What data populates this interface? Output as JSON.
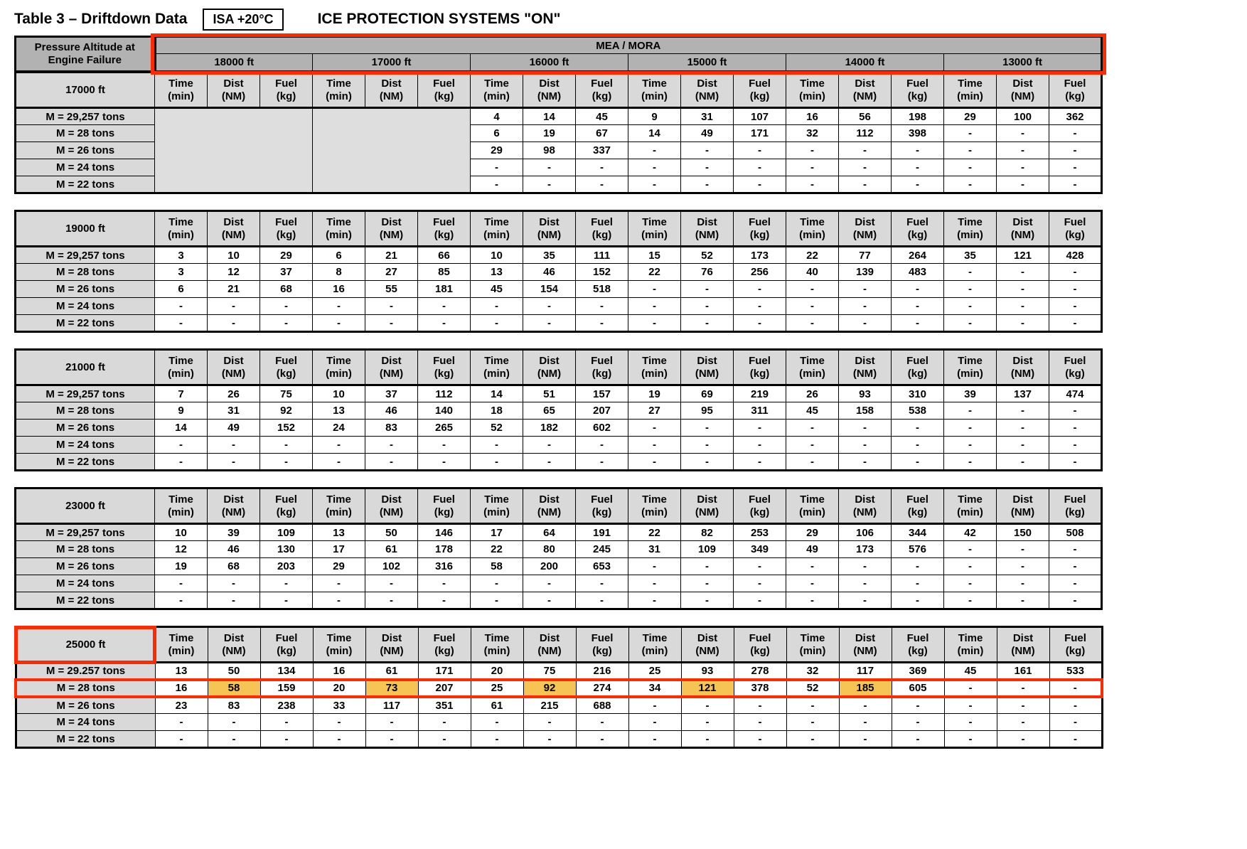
{
  "page": {
    "title": "Table 3 – Driftdown Data",
    "isa_badge": "ISA +20°C",
    "ice_label": "ICE PROTECTION SYSTEMS \"ON\""
  },
  "header": {
    "left_line1": "Pressure Altitude at",
    "left_line2": "Engine Failure",
    "mea_mora": "MEA / MORA",
    "groups": [
      "18000 ft",
      "17000 ft",
      "16000 ft",
      "15000 ft",
      "14000 ft",
      "13000 ft"
    ],
    "sub": [
      {
        "l1": "Time",
        "l2": "(min)"
      },
      {
        "l1": "Dist",
        "l2": "(NM)"
      },
      {
        "l1": "Fuel",
        "l2": "(kg)"
      }
    ]
  },
  "colors": {
    "header_gray": "#b2b2b2",
    "label_gray": "#d9d9d9",
    "empty_gray": "#dedede",
    "highlight_red": "#ff2a00",
    "highlight_amber": "#f5c455"
  },
  "blocks": [
    {
      "altitude": "17000 ft",
      "altitude_boxed": false,
      "rows": [
        {
          "label": "M = 29,257 tons",
          "boxed": false,
          "groups": [
            null,
            null,
            [
              "4",
              "14",
              "45"
            ],
            [
              "9",
              "31",
              "107"
            ],
            [
              "16",
              "56",
              "198"
            ],
            [
              "29",
              "100",
              "362"
            ]
          ]
        },
        {
          "label": "M = 28 tons",
          "boxed": false,
          "groups": [
            null,
            null,
            [
              "6",
              "19",
              "67"
            ],
            [
              "14",
              "49",
              "171"
            ],
            [
              "32",
              "112",
              "398"
            ],
            [
              "-",
              "-",
              "-"
            ]
          ]
        },
        {
          "label": "M = 26 tons",
          "boxed": false,
          "groups": [
            null,
            null,
            [
              "29",
              "98",
              "337"
            ],
            [
              "-",
              "-",
              "-"
            ],
            [
              "-",
              "-",
              "-"
            ],
            [
              "-",
              "-",
              "-"
            ]
          ]
        },
        {
          "label": "M = 24 tons",
          "boxed": false,
          "groups": [
            null,
            null,
            [
              "-",
              "-",
              "-"
            ],
            [
              "-",
              "-",
              "-"
            ],
            [
              "-",
              "-",
              "-"
            ],
            [
              "-",
              "-",
              "-"
            ]
          ]
        },
        {
          "label": "M = 22 tons",
          "boxed": false,
          "groups": [
            null,
            null,
            [
              "-",
              "-",
              "-"
            ],
            [
              "-",
              "-",
              "-"
            ],
            [
              "-",
              "-",
              "-"
            ],
            [
              "-",
              "-",
              "-"
            ]
          ]
        }
      ]
    },
    {
      "altitude": "19000 ft",
      "altitude_boxed": false,
      "rows": [
        {
          "label": "M = 29,257 tons",
          "boxed": false,
          "groups": [
            [
              "3",
              "10",
              "29"
            ],
            [
              "6",
              "21",
              "66"
            ],
            [
              "10",
              "35",
              "111"
            ],
            [
              "15",
              "52",
              "173"
            ],
            [
              "22",
              "77",
              "264"
            ],
            [
              "35",
              "121",
              "428"
            ]
          ]
        },
        {
          "label": "M = 28 tons",
          "boxed": false,
          "groups": [
            [
              "3",
              "12",
              "37"
            ],
            [
              "8",
              "27",
              "85"
            ],
            [
              "13",
              "46",
              "152"
            ],
            [
              "22",
              "76",
              "256"
            ],
            [
              "40",
              "139",
              "483"
            ],
            [
              "-",
              "-",
              "-"
            ]
          ]
        },
        {
          "label": "M = 26 tons",
          "boxed": false,
          "groups": [
            [
              "6",
              "21",
              "68"
            ],
            [
              "16",
              "55",
              "181"
            ],
            [
              "45",
              "154",
              "518"
            ],
            [
              "-",
              "-",
              "-"
            ],
            [
              "-",
              "-",
              "-"
            ],
            [
              "-",
              "-",
              "-"
            ]
          ]
        },
        {
          "label": "M = 24 tons",
          "boxed": false,
          "groups": [
            [
              "-",
              "-",
              "-"
            ],
            [
              "-",
              "-",
              "-"
            ],
            [
              "-",
              "-",
              "-"
            ],
            [
              "-",
              "-",
              "-"
            ],
            [
              "-",
              "-",
              "-"
            ],
            [
              "-",
              "-",
              "-"
            ]
          ]
        },
        {
          "label": "M = 22 tons",
          "boxed": false,
          "groups": [
            [
              "-",
              "-",
              "-"
            ],
            [
              "-",
              "-",
              "-"
            ],
            [
              "-",
              "-",
              "-"
            ],
            [
              "-",
              "-",
              "-"
            ],
            [
              "-",
              "-",
              "-"
            ],
            [
              "-",
              "-",
              "-"
            ]
          ]
        }
      ]
    },
    {
      "altitude": "21000 ft",
      "altitude_boxed": false,
      "rows": [
        {
          "label": "M = 29,257 tons",
          "boxed": false,
          "groups": [
            [
              "7",
              "26",
              "75"
            ],
            [
              "10",
              "37",
              "112"
            ],
            [
              "14",
              "51",
              "157"
            ],
            [
              "19",
              "69",
              "219"
            ],
            [
              "26",
              "93",
              "310"
            ],
            [
              "39",
              "137",
              "474"
            ]
          ]
        },
        {
          "label": "M = 28 tons",
          "boxed": false,
          "groups": [
            [
              "9",
              "31",
              "92"
            ],
            [
              "13",
              "46",
              "140"
            ],
            [
              "18",
              "65",
              "207"
            ],
            [
              "27",
              "95",
              "311"
            ],
            [
              "45",
              "158",
              "538"
            ],
            [
              "-",
              "-",
              "-"
            ]
          ]
        },
        {
          "label": "M = 26 tons",
          "boxed": false,
          "groups": [
            [
              "14",
              "49",
              "152"
            ],
            [
              "24",
              "83",
              "265"
            ],
            [
              "52",
              "182",
              "602"
            ],
            [
              "-",
              "-",
              "-"
            ],
            [
              "-",
              "-",
              "-"
            ],
            [
              "-",
              "-",
              "-"
            ]
          ]
        },
        {
          "label": "M = 24 tons",
          "boxed": false,
          "groups": [
            [
              "-",
              "-",
              "-"
            ],
            [
              "-",
              "-",
              "-"
            ],
            [
              "-",
              "-",
              "-"
            ],
            [
              "-",
              "-",
              "-"
            ],
            [
              "-",
              "-",
              "-"
            ],
            [
              "-",
              "-",
              "-"
            ]
          ]
        },
        {
          "label": "M = 22 tons",
          "boxed": false,
          "groups": [
            [
              "-",
              "-",
              "-"
            ],
            [
              "-",
              "-",
              "-"
            ],
            [
              "-",
              "-",
              "-"
            ],
            [
              "-",
              "-",
              "-"
            ],
            [
              "-",
              "-",
              "-"
            ],
            [
              "-",
              "-",
              "-"
            ]
          ]
        }
      ]
    },
    {
      "altitude": "23000 ft",
      "altitude_boxed": false,
      "rows": [
        {
          "label": "M = 29,257 tons",
          "boxed": false,
          "groups": [
            [
              "10",
              "39",
              "109"
            ],
            [
              "13",
              "50",
              "146"
            ],
            [
              "17",
              "64",
              "191"
            ],
            [
              "22",
              "82",
              "253"
            ],
            [
              "29",
              "106",
              "344"
            ],
            [
              "42",
              "150",
              "508"
            ]
          ]
        },
        {
          "label": "M = 28 tons",
          "boxed": false,
          "groups": [
            [
              "12",
              "46",
              "130"
            ],
            [
              "17",
              "61",
              "178"
            ],
            [
              "22",
              "80",
              "245"
            ],
            [
              "31",
              "109",
              "349"
            ],
            [
              "49",
              "173",
              "576"
            ],
            [
              "-",
              "-",
              "-"
            ]
          ]
        },
        {
          "label": "M = 26 tons",
          "boxed": false,
          "groups": [
            [
              "19",
              "68",
              "203"
            ],
            [
              "29",
              "102",
              "316"
            ],
            [
              "58",
              "200",
              "653"
            ],
            [
              "-",
              "-",
              "-"
            ],
            [
              "-",
              "-",
              "-"
            ],
            [
              "-",
              "-",
              "-"
            ]
          ]
        },
        {
          "label": "M = 24 tons",
          "boxed": false,
          "groups": [
            [
              "-",
              "-",
              "-"
            ],
            [
              "-",
              "-",
              "-"
            ],
            [
              "-",
              "-",
              "-"
            ],
            [
              "-",
              "-",
              "-"
            ],
            [
              "-",
              "-",
              "-"
            ],
            [
              "-",
              "-",
              "-"
            ]
          ]
        },
        {
          "label": "M = 22 tons",
          "boxed": false,
          "groups": [
            [
              "-",
              "-",
              "-"
            ],
            [
              "-",
              "-",
              "-"
            ],
            [
              "-",
              "-",
              "-"
            ],
            [
              "-",
              "-",
              "-"
            ],
            [
              "-",
              "-",
              "-"
            ],
            [
              "-",
              "-",
              "-"
            ]
          ]
        }
      ]
    },
    {
      "altitude": "25000 ft",
      "altitude_boxed": true,
      "rows": [
        {
          "label": "M = 29.257 tons",
          "boxed": false,
          "groups": [
            [
              "13",
              "50",
              "134"
            ],
            [
              "16",
              "61",
              "171"
            ],
            [
              "20",
              "75",
              "216"
            ],
            [
              "25",
              "93",
              "278"
            ],
            [
              "32",
              "117",
              "369"
            ],
            [
              "45",
              "161",
              "533"
            ]
          ]
        },
        {
          "label": "M = 28 tons",
          "boxed": true,
          "groups": [
            [
              "16",
              {
                "v": "58",
                "hl": true
              },
              "159"
            ],
            [
              "20",
              {
                "v": "73",
                "hl": true
              },
              "207"
            ],
            [
              "25",
              {
                "v": "92",
                "hl": true
              },
              "274"
            ],
            [
              "34",
              {
                "v": "121",
                "hl": true
              },
              "378"
            ],
            [
              "52",
              {
                "v": "185",
                "hl": true
              },
              "605"
            ],
            [
              "-",
              "-",
              "-"
            ]
          ]
        },
        {
          "label": "M = 26 tons",
          "boxed": false,
          "groups": [
            [
              "23",
              "83",
              "238"
            ],
            [
              "33",
              "117",
              "351"
            ],
            [
              "61",
              "215",
              "688"
            ],
            [
              "-",
              "-",
              "-"
            ],
            [
              "-",
              "-",
              "-"
            ],
            [
              "-",
              "-",
              "-"
            ]
          ]
        },
        {
          "label": "M = 24 tons",
          "boxed": false,
          "groups": [
            [
              "-",
              "-",
              "-"
            ],
            [
              "-",
              "-",
              "-"
            ],
            [
              "-",
              "-",
              "-"
            ],
            [
              "-",
              "-",
              "-"
            ],
            [
              "-",
              "-",
              "-"
            ],
            [
              "-",
              "-",
              "-"
            ]
          ]
        },
        {
          "label": "M = 22 tons",
          "boxed": false,
          "groups": [
            [
              "-",
              "-",
              "-"
            ],
            [
              "-",
              "-",
              "-"
            ],
            [
              "-",
              "-",
              "-"
            ],
            [
              "-",
              "-",
              "-"
            ],
            [
              "-",
              "-",
              "-"
            ],
            [
              "-",
              "-",
              "-"
            ]
          ]
        }
      ]
    }
  ]
}
